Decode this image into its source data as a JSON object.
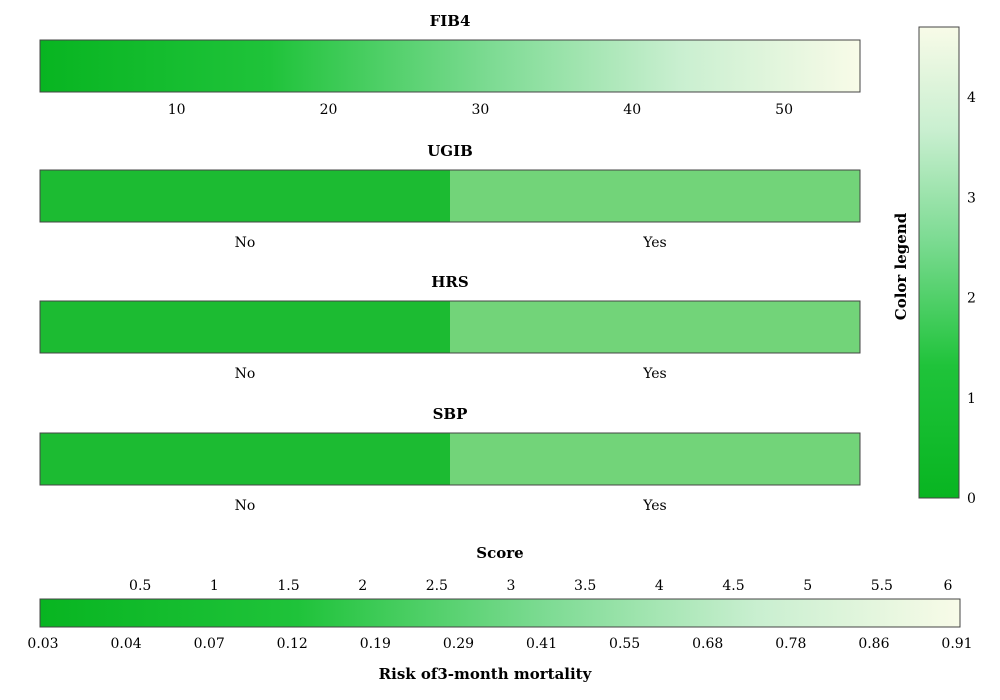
{
  "chart_data": {
    "type": "nomogram",
    "variables": [
      {
        "name": "FIB4",
        "kind": "continuous",
        "range": [
          1,
          55
        ],
        "ticks": [
          10,
          20,
          30,
          40,
          50
        ],
        "score_range": [
          0,
          4.6
        ]
      },
      {
        "name": "UGIB",
        "kind": "categorical",
        "categories": [
          "No",
          "Yes"
        ],
        "scores": [
          0.3,
          1.9
        ]
      },
      {
        "name": "HRS",
        "kind": "categorical",
        "categories": [
          "No",
          "Yes"
        ],
        "scores": [
          0.3,
          1.9
        ]
      },
      {
        "name": "SBP",
        "kind": "categorical",
        "categories": [
          "No",
          "Yes"
        ],
        "scores": [
          0.3,
          1.9
        ]
      }
    ],
    "color_legend": {
      "title": "Color legend",
      "range": [
        0,
        4.7
      ],
      "ticks": [
        0,
        1,
        2,
        3,
        4
      ],
      "colors": [
        "#08b521",
        "#f8fbe8"
      ]
    },
    "score_axis": {
      "title": "Score",
      "range": [
        0,
        6
      ],
      "ticks": [
        "0.5",
        "1",
        "1.5",
        "2",
        "2.5",
        "3",
        "3.5",
        "4",
        "4.5",
        "5",
        "5.5",
        "6"
      ]
    },
    "risk_axis": {
      "title": "Risk of3-month mortality",
      "ticks": [
        "0.03",
        "0.04",
        "0.07",
        "0.12",
        "0.19",
        "0.29",
        "0.41",
        "0.55",
        "0.68",
        "0.78",
        "0.86",
        "0.91"
      ]
    }
  }
}
